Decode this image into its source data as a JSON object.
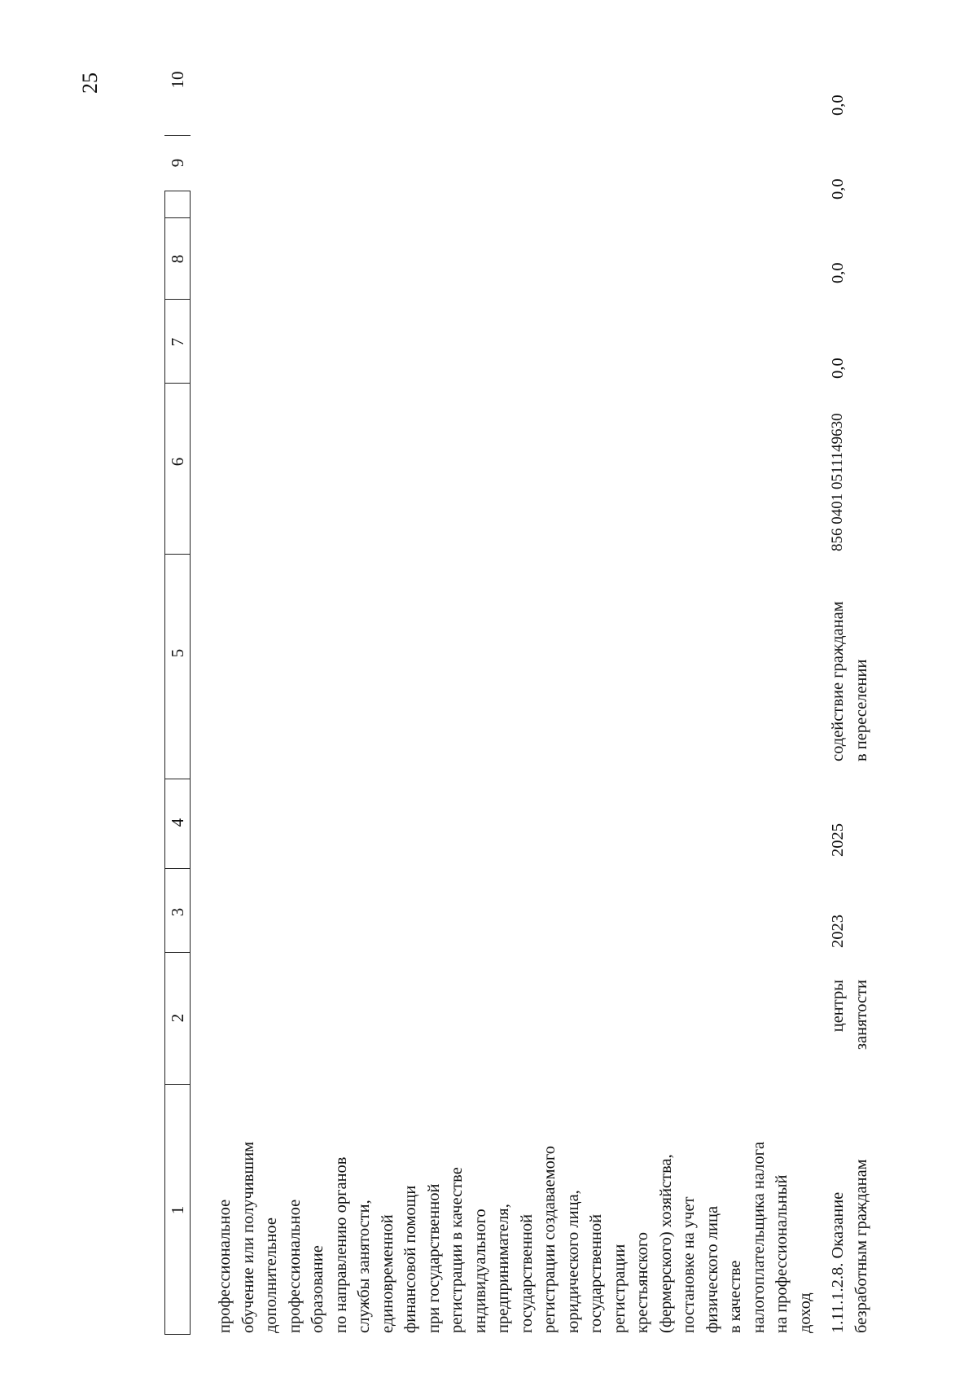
{
  "page_number": "25",
  "header_columns": [
    "1",
    "2",
    "3",
    "4",
    "5",
    "6",
    "7",
    "8",
    "9",
    "10"
  ],
  "continued_row": {
    "col1_lines": [
      "профессиональное",
      "обучение или получившим",
      "дополнительное",
      "профессиональное",
      "образование",
      "по направлению органов",
      "службы занятости,",
      "единовременной",
      "финансовой помощи",
      "при государственной",
      "регистрации в качестве",
      "индивидуального",
      "предпринимателя,",
      "государственной",
      "регистрации создаваемого",
      "юридического лица,",
      "государственной",
      "регистрации",
      "крестьянского",
      "(фермерского) хозяйства,",
      "постановке на учет",
      "физического лица",
      "в качестве",
      "налогоплательщика налога",
      "на профессиональный",
      "доход"
    ]
  },
  "row": {
    "col1_lines": [
      "1.11.1.2.8. Оказание",
      "безработным гражданам"
    ],
    "col2_lines": [
      "центры",
      "занятости"
    ],
    "col3": "2023",
    "col4": "2025",
    "col5_lines": [
      "содействие гражданам",
      "в переселении"
    ],
    "col6": "856 0401 0511149630",
    "col7": "0,0",
    "col8": "0,0",
    "col9": "0,0",
    "col10": "0,0"
  }
}
